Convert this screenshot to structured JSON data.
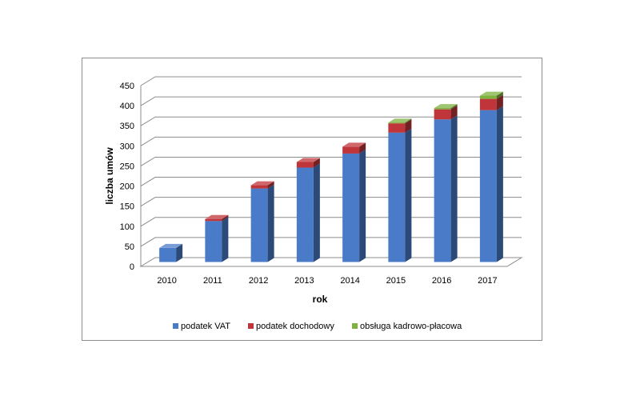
{
  "chart_data": {
    "type": "bar",
    "stacked": true,
    "three_d": true,
    "categories": [
      "2010",
      "2011",
      "2012",
      "2013",
      "2014",
      "2015",
      "2016",
      "2017"
    ],
    "series": [
      {
        "name": "podatek VAT",
        "color": "#4A7BC8",
        "values": [
          35,
          102,
          183,
          235,
          270,
          322,
          355,
          378
        ]
      },
      {
        "name": "podatek dochodowy",
        "color": "#C0353A",
        "values": [
          0,
          5,
          8,
          14,
          17,
          23,
          25,
          28
        ]
      },
      {
        "name": "obsługa kadrowo-płacowa",
        "color": "#7DB23F",
        "values": [
          0,
          0,
          0,
          0,
          0,
          2,
          3,
          8
        ]
      }
    ],
    "xlabel": "rok",
    "ylabel": "liczba umów",
    "ylim": [
      0,
      450
    ],
    "yticks": [
      "0",
      "50",
      "100",
      "150",
      "200",
      "250",
      "300",
      "350",
      "400",
      "450"
    ],
    "grid": true,
    "legend_position": "bottom"
  }
}
